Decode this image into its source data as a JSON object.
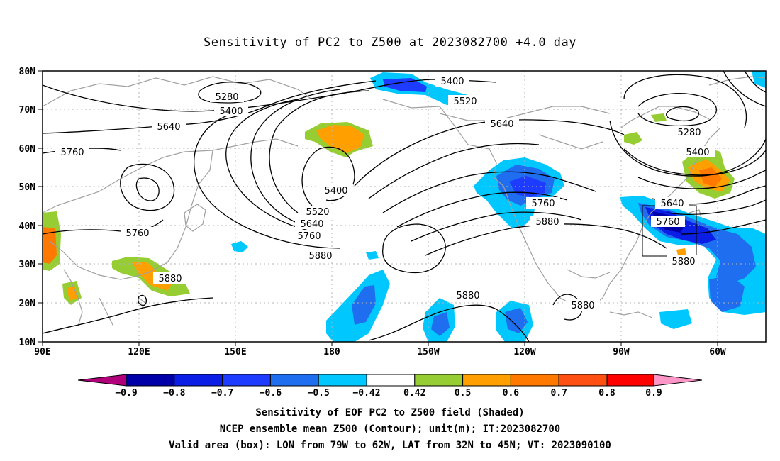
{
  "title": "Sensitivity of PC2 to Z500 at 2023082700 +4.0 day",
  "map": {
    "lat_labels": [
      "80N",
      "70N",
      "60N",
      "50N",
      "40N",
      "30N",
      "20N",
      "10N"
    ],
    "lon_labels": [
      "90E",
      "120E",
      "150E",
      "180",
      "150W",
      "120W",
      "90W",
      "60W"
    ],
    "contour_labels": [
      {
        "text": "5280"
      },
      {
        "text": "5400"
      },
      {
        "text": "5640"
      },
      {
        "text": "5760"
      },
      {
        "text": "5400"
      },
      {
        "text": "5520"
      },
      {
        "text": "5640"
      },
      {
        "text": "5520"
      },
      {
        "text": "5640"
      },
      {
        "text": "5760"
      },
      {
        "text": "5880"
      },
      {
        "text": "5760"
      },
      {
        "text": "5880"
      },
      {
        "text": "5760"
      },
      {
        "text": "5880"
      },
      {
        "text": "5880"
      },
      {
        "text": "5880"
      },
      {
        "text": "5280"
      },
      {
        "text": "5400"
      },
      {
        "text": "5640"
      },
      {
        "text": "5760"
      },
      {
        "text": "5880"
      },
      {
        "text": "5400"
      }
    ],
    "valid_box": {
      "lon_min": "79W",
      "lon_max": "62W",
      "lat_min": "32N",
      "lat_max": "45N"
    },
    "shading_colors": {
      "neg_extreme": "#b0007a",
      "neg_09": "#0000a8",
      "neg_08": "#0a1ee6",
      "neg_07": "#1e3cff",
      "neg_06": "#1f6ef0",
      "neg_05": "#1ab4f0",
      "neg_042": "#00c8ff",
      "neutral": "#ffffff",
      "pos_042": "#96cd32",
      "pos_05": "#ffa000",
      "pos_06": "#ff7800",
      "pos_07": "#ff5014",
      "pos_08": "#ff0000",
      "pos_extreme": "#ff96c8"
    }
  },
  "colorbar": {
    "labels": [
      "−0.9",
      "−0.8",
      "−0.7",
      "−0.6",
      "−0.5",
      "−0.42",
      "0.42",
      "0.5",
      "0.6",
      "0.7",
      "0.8",
      "0.9"
    ]
  },
  "captions": {
    "line1": "Sensitivity of EOF PC2 to Z500 field (Shaded)",
    "line2": "NCEP ensemble mean Z500 (Contour); unit(m); IT:2023082700",
    "line3": "Valid area (box): LON from 79W to 62W, LAT from 32N to 45N; VT: 2023090100"
  }
}
